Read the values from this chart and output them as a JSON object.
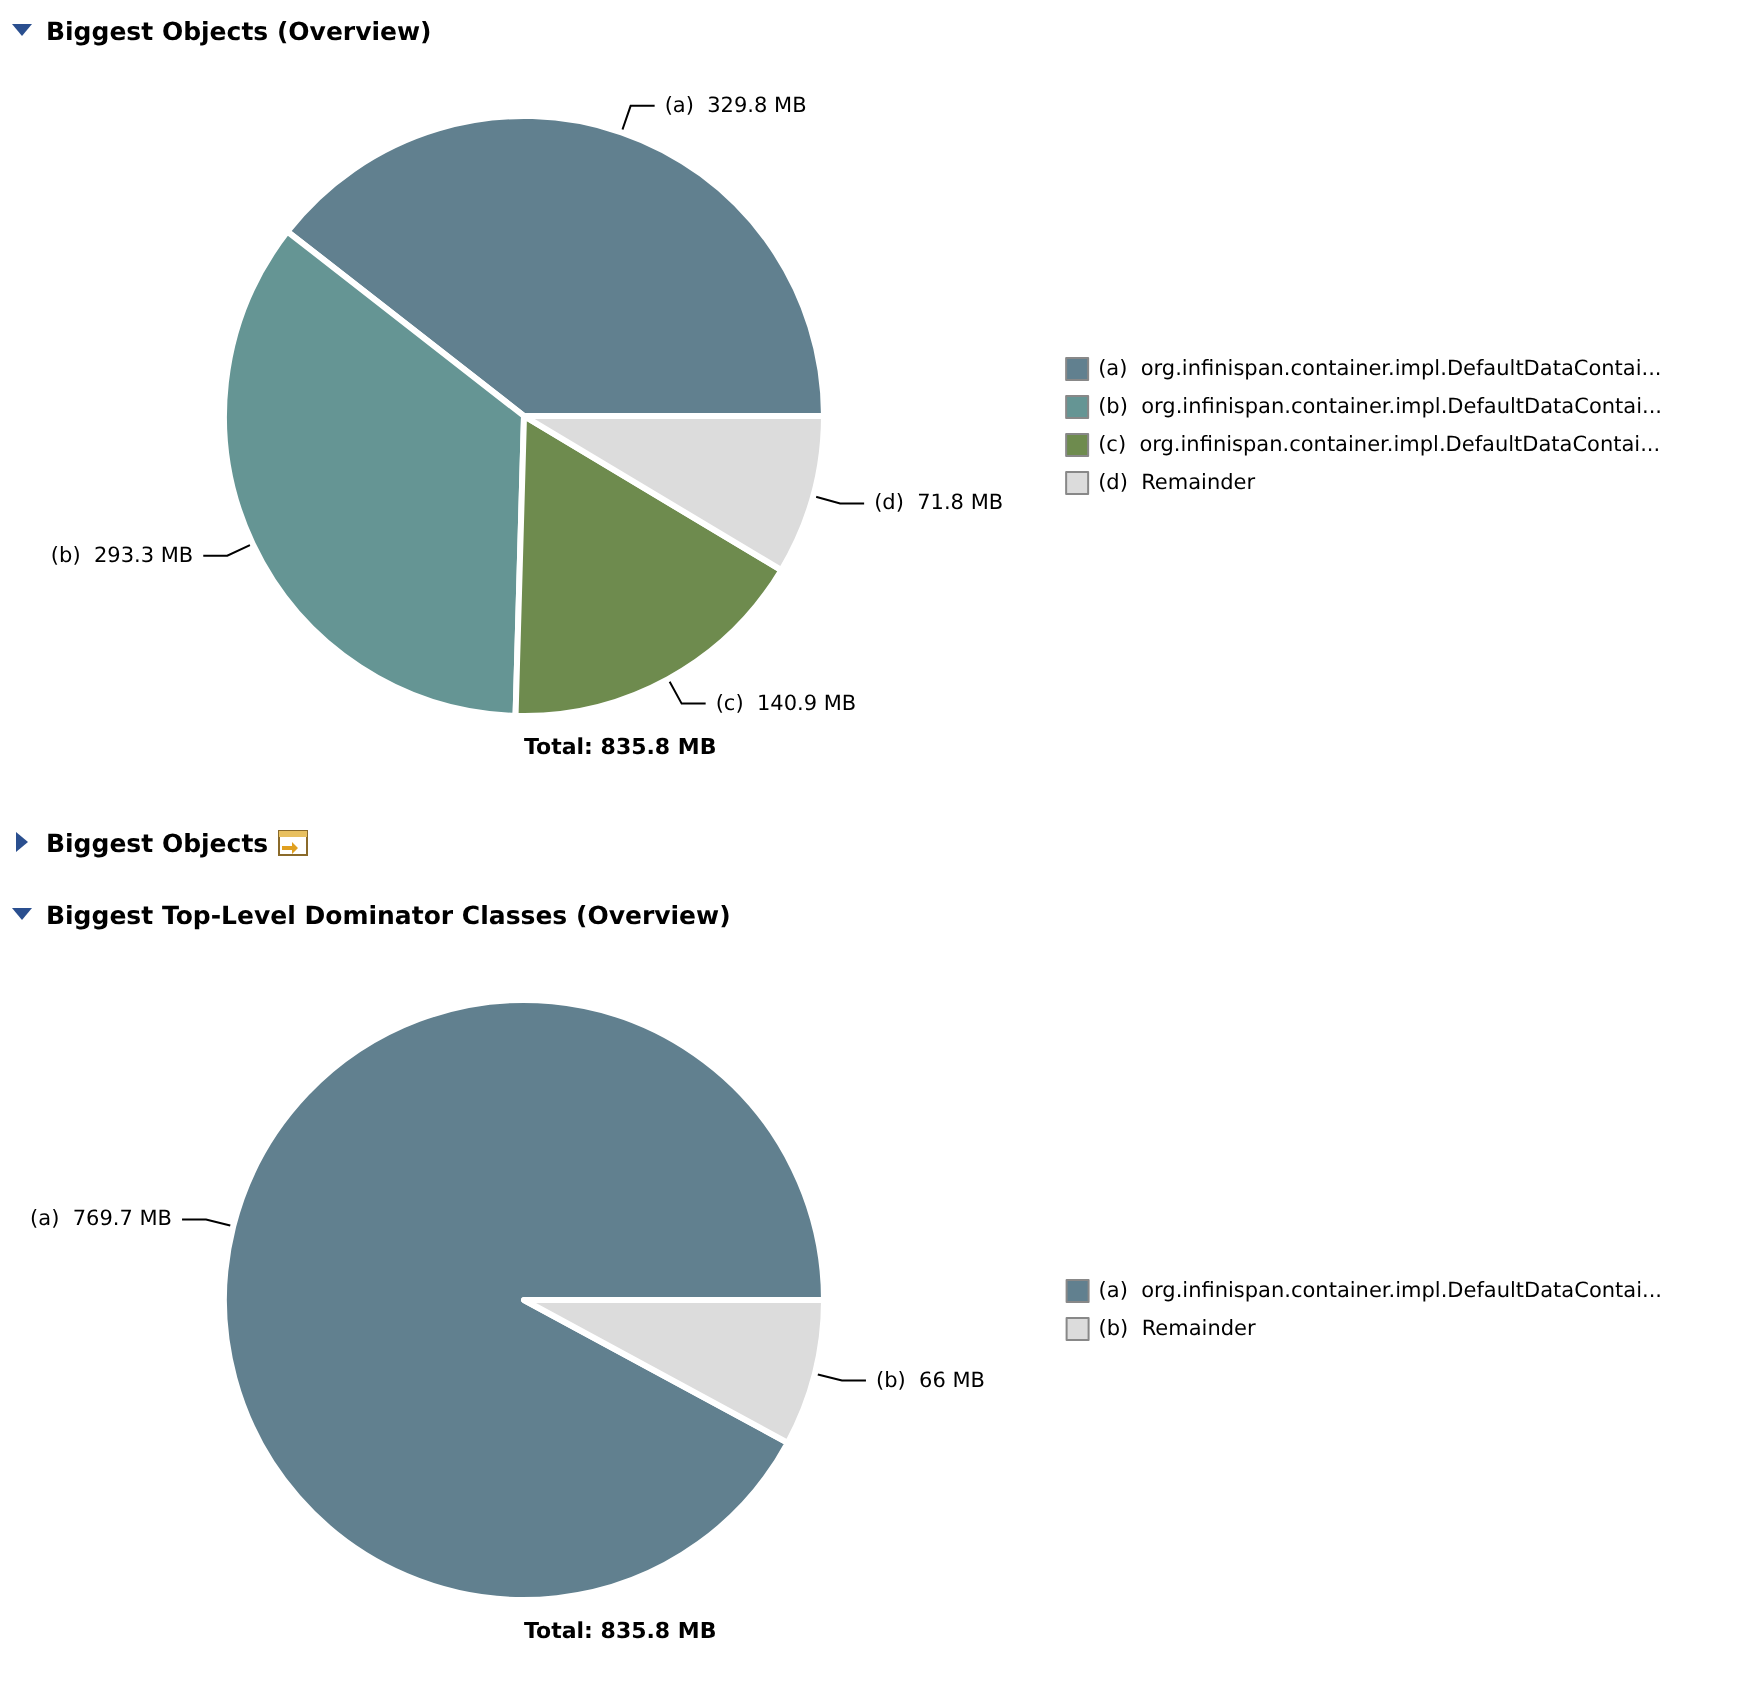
{
  "chart_data": [
    {
      "type": "pie",
      "title": "Biggest Objects (Overview)",
      "categories": [
        "(a)  org.infinispan.container.impl.DefaultDataContai...",
        "(b)  org.infinispan.container.impl.DefaultDataContai...",
        "(c)  org.infinispan.container.impl.DefaultDataContai...",
        "(d)  Remainder"
      ],
      "values": [
        329.8,
        293.3,
        140.9,
        71.8
      ],
      "value_labels": [
        "(a)  329.8 MB",
        "(b)  293.3 MB",
        "(c)  140.9 MB",
        "(d)  71.8 MB"
      ],
      "colors": [
        "#61808f",
        "#659594",
        "#6e8b4e",
        "#dcdcdc"
      ],
      "legend": "right",
      "annotations": [
        "Total: 835.8 MB",
        "Biggest Objects"
      ]
    },
    {
      "type": "pie",
      "title": "Biggest Top-Level Dominator Classes (Overview)",
      "categories": [
        "(a)  org.infinispan.container.impl.DefaultDataContai...",
        "(b)  Remainder"
      ],
      "values": [
        769.7,
        66
      ],
      "value_labels": [
        "(a)  769.7 MB",
        "(b)  66 MB"
      ],
      "colors": [
        "#61808f",
        "#dcdcdc"
      ],
      "legend": "right",
      "annotations": [
        "Total: 835.8 MB"
      ]
    }
  ]
}
